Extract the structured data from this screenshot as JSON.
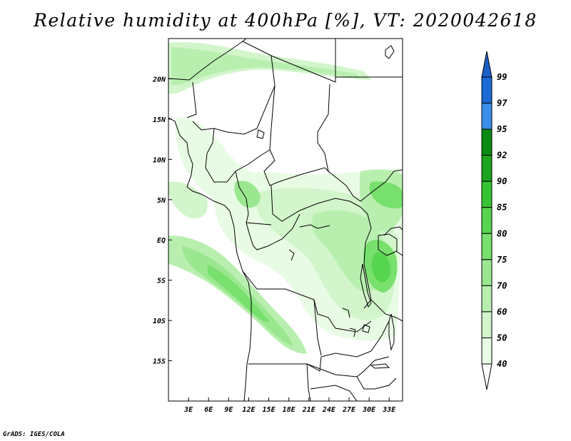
{
  "title": "Relative humidity at 400hPa [%], VT: 2020042618",
  "credit": "GrADS: IGES/COLA",
  "map": {
    "lon_range": [
      0,
      35
    ],
    "lat_range": [
      -20,
      25
    ],
    "lat_labels": [
      "20N",
      "15N",
      "10N",
      "5N",
      "EQ",
      "5S",
      "10S",
      "15S"
    ],
    "lat_values": [
      20,
      15,
      10,
      5,
      0,
      -5,
      -10,
      -15
    ],
    "lon_labels": [
      "3E",
      "6E",
      "9E",
      "12E",
      "15E",
      "18E",
      "21E",
      "24E",
      "27E",
      "30E",
      "33E"
    ],
    "lon_values": [
      3,
      6,
      9,
      12,
      15,
      18,
      21,
      24,
      27,
      30,
      33
    ]
  },
  "colorbar": {
    "levels": [
      "99",
      "97",
      "95",
      "92",
      "90",
      "85",
      "80",
      "75",
      "70",
      "60",
      "50",
      "40"
    ],
    "colors": [
      "#1b6ad6",
      "#3c8fe8",
      "#0a8a14",
      "#1ca61f",
      "#37c434",
      "#56d54e",
      "#78e06d",
      "#9ae78f",
      "#b8efaf",
      "#d2f5cb",
      "#e8fbe4"
    ],
    "top_arrow_color": "#1b5fc9",
    "bottom_arrow_color": "#ffffff"
  }
}
